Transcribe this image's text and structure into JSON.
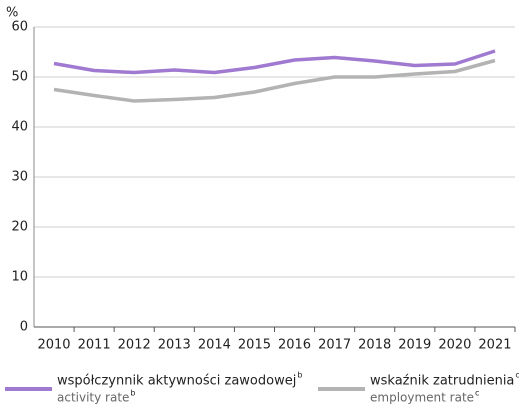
{
  "chart_data": {
    "type": "line",
    "y_unit": "%",
    "categories": [
      "2010",
      "2011",
      "2012",
      "2013",
      "2014",
      "2015",
      "2016",
      "2017",
      "2018",
      "2019",
      "2020",
      "2021"
    ],
    "series": [
      {
        "name": "współczynnik aktywności zawodowej",
        "name_en": "activity rate",
        "note": "b",
        "color": "#a07ad0",
        "values": [
          52.7,
          51.3,
          50.9,
          51.4,
          50.9,
          51.9,
          53.4,
          53.9,
          53.2,
          52.3,
          52.6,
          55.2
        ]
      },
      {
        "name": "wskaźnik zatrudnienia",
        "name_en": "employment rate",
        "note": "c",
        "color": "#b3b3b3",
        "values": [
          47.5,
          46.3,
          45.2,
          45.5,
          45.9,
          47.0,
          48.7,
          50.0,
          50.0,
          50.6,
          51.1,
          53.3
        ]
      }
    ],
    "ylim": [
      0,
      60
    ],
    "yticks": [
      0,
      10,
      20,
      30,
      40,
      50,
      60
    ],
    "grid": true
  }
}
